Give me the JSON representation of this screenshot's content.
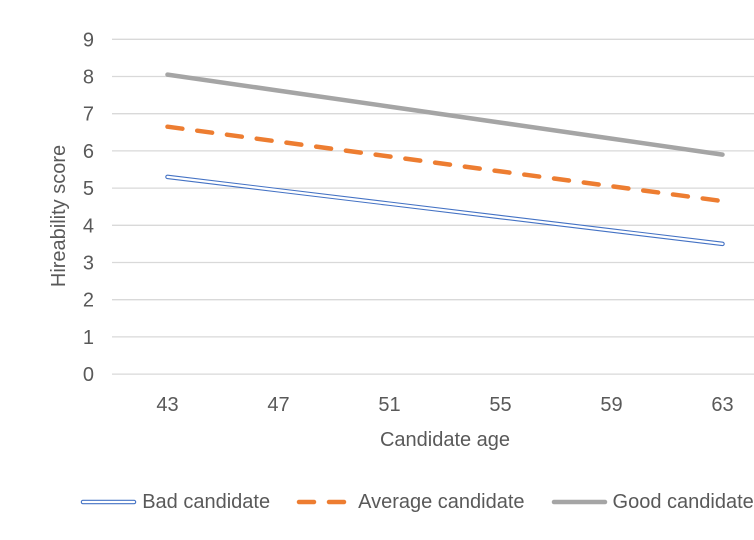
{
  "colors": {
    "background": "#FFFFFF",
    "gridline": "#D9D9D9",
    "axis_text": "#595959",
    "bad_candidate_blue": "#4472C4",
    "average_candidate_orange": "#ED7D31",
    "good_candidate_gray": "#A5A5A5"
  },
  "chart_data": {
    "type": "line",
    "title": "",
    "xlabel": "Candidate age",
    "ylabel": "Hireability score",
    "categories": [
      "43",
      "47",
      "51",
      "55",
      "59",
      "63"
    ],
    "yticks": [
      0,
      1,
      2,
      3,
      4,
      5,
      6,
      7,
      8,
      9
    ],
    "ylim": [
      0,
      9
    ],
    "grid": "horizontal-only",
    "legend_position": "bottom",
    "series": [
      {
        "name": "Bad candidate",
        "color": "#4472C4",
        "line_style": "double",
        "values": [
          5.3,
          4.94,
          4.58,
          4.22,
          3.86,
          3.5
        ]
      },
      {
        "name": "Average candidate",
        "color": "#ED7D31",
        "line_style": "dashed",
        "values": [
          6.65,
          6.25,
          5.85,
          5.45,
          5.05,
          4.65
        ]
      },
      {
        "name": "Good candidate",
        "color": "#A5A5A5",
        "line_style": "solid",
        "values": [
          8.05,
          7.62,
          7.19,
          6.76,
          6.33,
          5.9
        ]
      }
    ]
  }
}
